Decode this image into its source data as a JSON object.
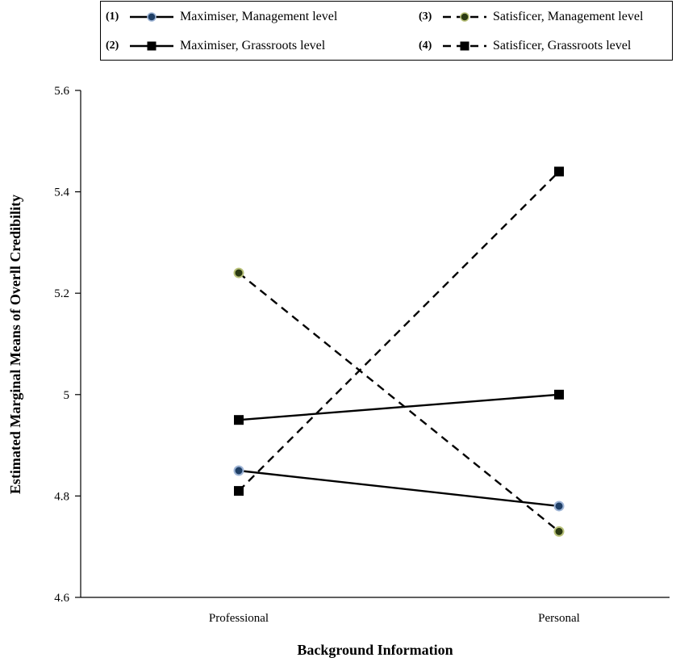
{
  "chart_data": {
    "type": "line",
    "categories": [
      "Professional",
      "Personal"
    ],
    "xlabel": "Background Information",
    "ylabel": "Estimated Marginal Means of Overll Credibility",
    "ylim": [
      4.6,
      5.6
    ],
    "yticks": [
      4.6,
      4.8,
      5,
      5.2,
      5.4,
      5.6
    ],
    "ytick_labels": [
      "4.6",
      "4.8",
      "5",
      "5.2",
      "5.4",
      "5.6"
    ],
    "grid": false,
    "legend_position": "top",
    "series": [
      {
        "num": "(1)",
        "name": "Maximiser, Management level",
        "values": [
          4.85,
          4.78
        ],
        "line": "solid",
        "marker": "circle",
        "marker_fill": "#1f3f66",
        "marker_stroke": "#9fb5d6"
      },
      {
        "num": "(2)",
        "name": "Maximiser, Grassroots level",
        "values": [
          4.95,
          5.0
        ],
        "line": "solid",
        "marker": "square",
        "marker_fill": "#000000",
        "marker_stroke": "#000000"
      },
      {
        "num": "(3)",
        "name": "Satisficer, Management level",
        "values": [
          5.24,
          4.73
        ],
        "line": "dashed",
        "marker": "circle",
        "marker_fill": "#2b3a12",
        "marker_stroke": "#b9c27a"
      },
      {
        "num": "(4)",
        "name": "Satisficer, Grassroots level",
        "values": [
          4.81,
          5.44
        ],
        "line": "dashed",
        "marker": "square",
        "marker_fill": "#000000",
        "marker_stroke": "#000000"
      }
    ]
  }
}
